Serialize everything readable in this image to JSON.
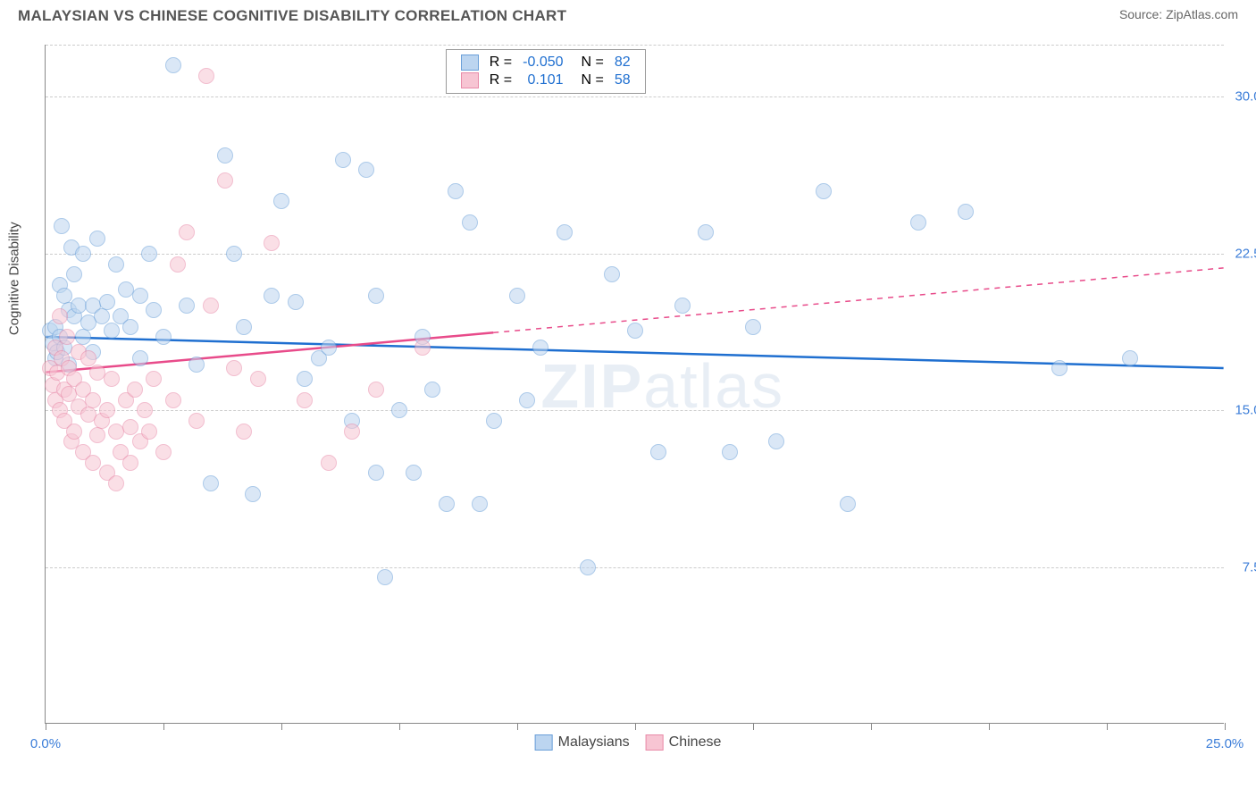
{
  "header": {
    "title": "MALAYSIAN VS CHINESE COGNITIVE DISABILITY CORRELATION CHART",
    "source_label": "Source: ",
    "source_value": "ZipAtlas.com"
  },
  "chart": {
    "type": "scatter",
    "y_axis_label": "Cognitive Disability",
    "xlim": [
      0,
      25
    ],
    "ylim": [
      0,
      32.5
    ],
    "x_ticks": [
      0,
      2.5,
      5,
      7.5,
      10,
      12.5,
      15,
      17.5,
      20,
      22.5,
      25
    ],
    "x_tick_labels": {
      "0": "0.0%",
      "25": "25.0%"
    },
    "y_gridlines": [
      7.5,
      15,
      22.5,
      30
    ],
    "y_tick_labels": {
      "7.5": "7.5%",
      "15": "15.0%",
      "22.5": "22.5%",
      "30": "30.0%"
    },
    "background_color": "#ffffff",
    "grid_color": "#cccccc",
    "axis_label_color": "#3b7dd8",
    "marker_radius": 9,
    "marker_stroke_width": 1.5,
    "series": [
      {
        "name": "Malaysians",
        "fill": "#bcd5f0",
        "stroke": "#6a9fd8",
        "fill_opacity": 0.55,
        "r": -0.05,
        "n": 82,
        "trend": {
          "x1": 0,
          "y1": 18.5,
          "x2": 25,
          "y2": 17.0,
          "color": "#1f6fd0",
          "width": 2.5,
          "solid_until_x": 25
        },
        "points": [
          [
            0.1,
            18.8
          ],
          [
            0.15,
            18.2
          ],
          [
            0.2,
            17.5
          ],
          [
            0.2,
            19.0
          ],
          [
            0.25,
            17.8
          ],
          [
            0.3,
            18.5
          ],
          [
            0.3,
            21.0
          ],
          [
            0.35,
            23.8
          ],
          [
            0.4,
            18.0
          ],
          [
            0.4,
            20.5
          ],
          [
            0.5,
            19.8
          ],
          [
            0.5,
            17.2
          ],
          [
            0.55,
            22.8
          ],
          [
            0.6,
            19.5
          ],
          [
            0.6,
            21.5
          ],
          [
            0.7,
            20.0
          ],
          [
            0.8,
            22.5
          ],
          [
            0.8,
            18.5
          ],
          [
            0.9,
            19.2
          ],
          [
            1.0,
            17.8
          ],
          [
            1.0,
            20.0
          ],
          [
            1.1,
            23.2
          ],
          [
            1.2,
            19.5
          ],
          [
            1.3,
            20.2
          ],
          [
            1.4,
            18.8
          ],
          [
            1.5,
            22.0
          ],
          [
            1.6,
            19.5
          ],
          [
            1.7,
            20.8
          ],
          [
            1.8,
            19.0
          ],
          [
            2.0,
            20.5
          ],
          [
            2.0,
            17.5
          ],
          [
            2.2,
            22.5
          ],
          [
            2.3,
            19.8
          ],
          [
            2.5,
            18.5
          ],
          [
            2.7,
            31.5
          ],
          [
            3.0,
            20.0
          ],
          [
            3.2,
            17.2
          ],
          [
            3.5,
            11.5
          ],
          [
            3.8,
            27.2
          ],
          [
            4.0,
            22.5
          ],
          [
            4.2,
            19.0
          ],
          [
            4.4,
            11.0
          ],
          [
            4.8,
            20.5
          ],
          [
            5.0,
            25.0
          ],
          [
            5.3,
            20.2
          ],
          [
            5.5,
            16.5
          ],
          [
            5.8,
            17.5
          ],
          [
            6.0,
            18.0
          ],
          [
            6.3,
            27.0
          ],
          [
            6.5,
            14.5
          ],
          [
            6.8,
            26.5
          ],
          [
            7.0,
            20.5
          ],
          [
            7.0,
            12.0
          ],
          [
            7.2,
            7.0
          ],
          [
            7.5,
            15.0
          ],
          [
            7.8,
            12.0
          ],
          [
            8.0,
            18.5
          ],
          [
            8.2,
            16.0
          ],
          [
            8.5,
            10.5
          ],
          [
            8.7,
            25.5
          ],
          [
            9.0,
            24.0
          ],
          [
            9.2,
            10.5
          ],
          [
            9.5,
            14.5
          ],
          [
            10.0,
            20.5
          ],
          [
            10.2,
            15.5
          ],
          [
            10.5,
            18.0
          ],
          [
            11.0,
            23.5
          ],
          [
            11.5,
            7.5
          ],
          [
            12.0,
            21.5
          ],
          [
            12.5,
            18.8
          ],
          [
            13.0,
            13.0
          ],
          [
            13.5,
            20.0
          ],
          [
            14.0,
            23.5
          ],
          [
            14.5,
            13.0
          ],
          [
            15.0,
            19.0
          ],
          [
            15.5,
            13.5
          ],
          [
            16.5,
            25.5
          ],
          [
            17.0,
            10.5
          ],
          [
            18.5,
            24.0
          ],
          [
            19.5,
            24.5
          ],
          [
            21.5,
            17.0
          ],
          [
            23.0,
            17.5
          ]
        ]
      },
      {
        "name": "Chinese",
        "fill": "#f7c5d3",
        "stroke": "#e88aa8",
        "fill_opacity": 0.55,
        "r": 0.101,
        "n": 58,
        "trend": {
          "x1": 0,
          "y1": 16.8,
          "x2": 25,
          "y2": 21.8,
          "color": "#e84b8a",
          "width": 2.5,
          "solid_until_x": 9.5
        },
        "points": [
          [
            0.1,
            17.0
          ],
          [
            0.15,
            16.2
          ],
          [
            0.2,
            15.5
          ],
          [
            0.2,
            18.0
          ],
          [
            0.25,
            16.8
          ],
          [
            0.3,
            19.5
          ],
          [
            0.3,
            15.0
          ],
          [
            0.35,
            17.5
          ],
          [
            0.4,
            16.0
          ],
          [
            0.4,
            14.5
          ],
          [
            0.45,
            18.5
          ],
          [
            0.5,
            15.8
          ],
          [
            0.5,
            17.0
          ],
          [
            0.55,
            13.5
          ],
          [
            0.6,
            16.5
          ],
          [
            0.6,
            14.0
          ],
          [
            0.7,
            17.8
          ],
          [
            0.7,
            15.2
          ],
          [
            0.8,
            13.0
          ],
          [
            0.8,
            16.0
          ],
          [
            0.9,
            14.8
          ],
          [
            0.9,
            17.5
          ],
          [
            1.0,
            12.5
          ],
          [
            1.0,
            15.5
          ],
          [
            1.1,
            16.8
          ],
          [
            1.1,
            13.8
          ],
          [
            1.2,
            14.5
          ],
          [
            1.3,
            12.0
          ],
          [
            1.3,
            15.0
          ],
          [
            1.4,
            16.5
          ],
          [
            1.5,
            11.5
          ],
          [
            1.5,
            14.0
          ],
          [
            1.6,
            13.0
          ],
          [
            1.7,
            15.5
          ],
          [
            1.8,
            12.5
          ],
          [
            1.8,
            14.2
          ],
          [
            1.9,
            16.0
          ],
          [
            2.0,
            13.5
          ],
          [
            2.1,
            15.0
          ],
          [
            2.2,
            14.0
          ],
          [
            2.3,
            16.5
          ],
          [
            2.5,
            13.0
          ],
          [
            2.7,
            15.5
          ],
          [
            2.8,
            22.0
          ],
          [
            3.0,
            23.5
          ],
          [
            3.2,
            14.5
          ],
          [
            3.4,
            31.0
          ],
          [
            3.5,
            20.0
          ],
          [
            3.8,
            26.0
          ],
          [
            4.0,
            17.0
          ],
          [
            4.2,
            14.0
          ],
          [
            4.5,
            16.5
          ],
          [
            4.8,
            23.0
          ],
          [
            5.5,
            15.5
          ],
          [
            6.0,
            12.5
          ],
          [
            6.5,
            14.0
          ],
          [
            7.0,
            16.0
          ],
          [
            8.0,
            18.0
          ]
        ]
      }
    ],
    "stats_legend": {
      "r_label": "R =",
      "n_label": "N =",
      "value_color": "#1f6fd0"
    },
    "bottom_legend": {
      "items": [
        "Malaysians",
        "Chinese"
      ]
    },
    "watermark": {
      "bold": "ZIP",
      "rest": "atlas"
    }
  }
}
